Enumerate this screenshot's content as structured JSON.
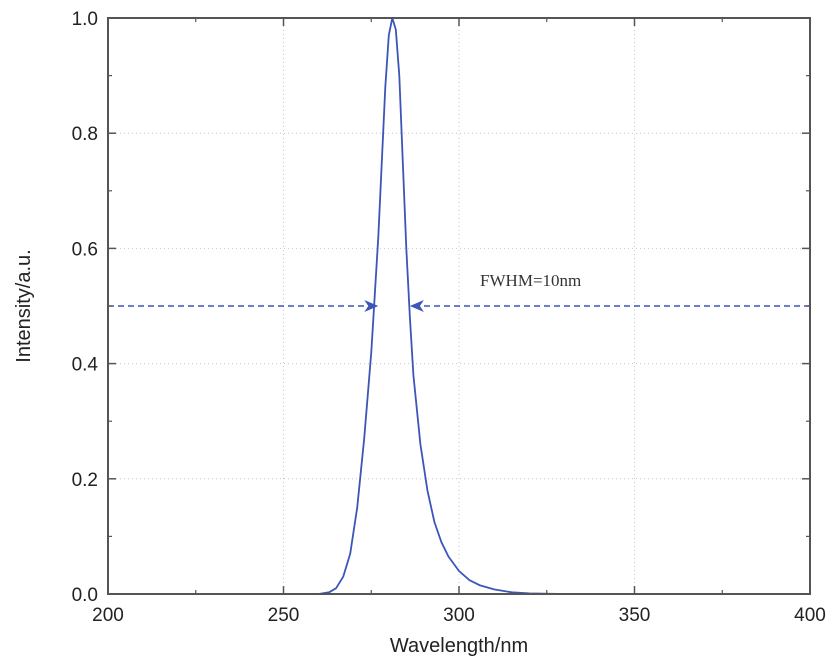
{
  "chart_data": {
    "type": "line",
    "title": "",
    "xlabel": "Wavelength/nm",
    "ylabel": "Intensity/a.u.",
    "xlim": [
      200,
      400
    ],
    "ylim": [
      0,
      1.0
    ],
    "x_ticks": [
      200,
      250,
      300,
      350,
      400
    ],
    "x_tick_labels": [
      "200",
      "250",
      "300",
      "350",
      "400"
    ],
    "y_ticks": [
      0.0,
      0.2,
      0.4,
      0.6,
      0.8,
      1.0
    ],
    "y_tick_labels": [
      "0.0",
      "0.2",
      "0.4",
      "0.6",
      "0.8",
      "1.0"
    ],
    "grid": true,
    "series": [
      {
        "color": "#3b55b8",
        "x": [
          200,
          250,
          260,
          263,
          265,
          267,
          269,
          271,
          273,
          275,
          277,
          278,
          279,
          280,
          281,
          282,
          283,
          284,
          285,
          286,
          287,
          289,
          291,
          293,
          295,
          297,
          300,
          303,
          306,
          310,
          315,
          320,
          330,
          340,
          400
        ],
        "y": [
          0.0,
          0.0,
          0.0,
          0.003,
          0.01,
          0.03,
          0.07,
          0.15,
          0.27,
          0.42,
          0.62,
          0.75,
          0.88,
          0.97,
          1.0,
          0.98,
          0.9,
          0.75,
          0.6,
          0.48,
          0.38,
          0.26,
          0.18,
          0.125,
          0.09,
          0.065,
          0.04,
          0.024,
          0.015,
          0.008,
          0.003,
          0.001,
          0.0,
          0.0,
          0.0
        ]
      }
    ],
    "annotations": [
      {
        "text": "FWHM=10nm",
        "x": 306,
        "y": 0.535,
        "color": "#333333"
      }
    ],
    "arrows": [
      {
        "x_start": 200,
        "x_end": 277,
        "y": 0.5,
        "color": "#3b55b8",
        "style": "dashed"
      },
      {
        "x_start": 400,
        "x_end": 286,
        "y": 0.5,
        "color": "#3b55b8",
        "style": "dashed"
      }
    ]
  }
}
